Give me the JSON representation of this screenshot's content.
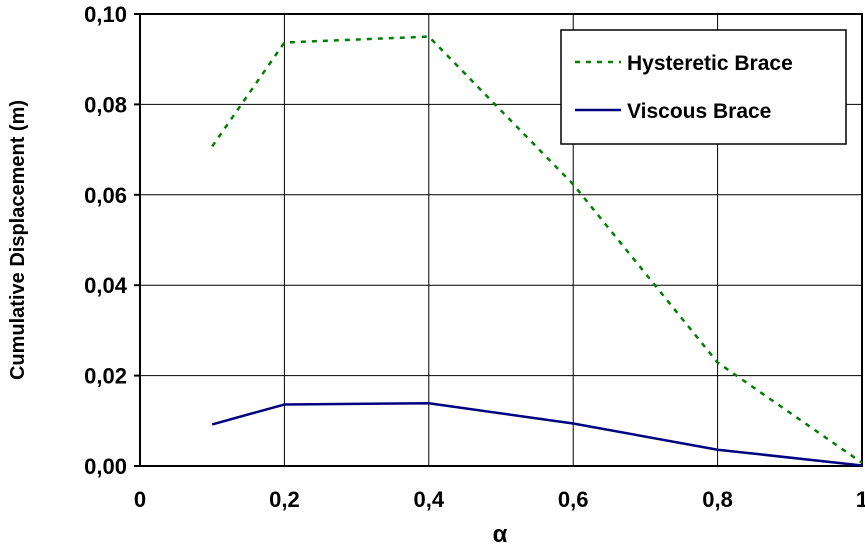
{
  "chart_data": {
    "type": "line",
    "title": "",
    "xlabel": "α",
    "ylabel": "Cumulative Displacement (m)",
    "xlim": [
      0,
      1
    ],
    "ylim": [
      0,
      0.1
    ],
    "grid": true,
    "legend_position": "top-right",
    "x_ticks": [
      {
        "value": 0,
        "label": "0"
      },
      {
        "value": 0.2,
        "label": "0,2"
      },
      {
        "value": 0.4,
        "label": "0,4"
      },
      {
        "value": 0.6,
        "label": "0,6"
      },
      {
        "value": 0.8,
        "label": "0,8"
      },
      {
        "value": 1,
        "label": "1"
      }
    ],
    "y_ticks": [
      {
        "value": 0,
        "label": "0,00"
      },
      {
        "value": 0.02,
        "label": "0,02"
      },
      {
        "value": 0.04,
        "label": "0,04"
      },
      {
        "value": 0.06,
        "label": "0,06"
      },
      {
        "value": 0.08,
        "label": "0,08"
      },
      {
        "value": 0.1,
        "label": "0,10"
      }
    ],
    "series": [
      {
        "name": "Hysteretic Brace",
        "color": "#008000",
        "line_style": "dashed",
        "x": [
          0.1,
          0.2,
          0.4,
          0.6,
          0.8,
          1.0
        ],
        "y": [
          0.0707,
          0.0937,
          0.095,
          0.0623,
          0.0229,
          0.0007
        ]
      },
      {
        "name": "Viscous Brace",
        "color": "#000080",
        "line_style": "solid",
        "x": [
          0.1,
          0.2,
          0.4,
          0.6,
          0.8,
          1.0
        ],
        "y": [
          0.0092,
          0.0136,
          0.0139,
          0.0094,
          0.0036,
          0.0001
        ]
      }
    ]
  }
}
